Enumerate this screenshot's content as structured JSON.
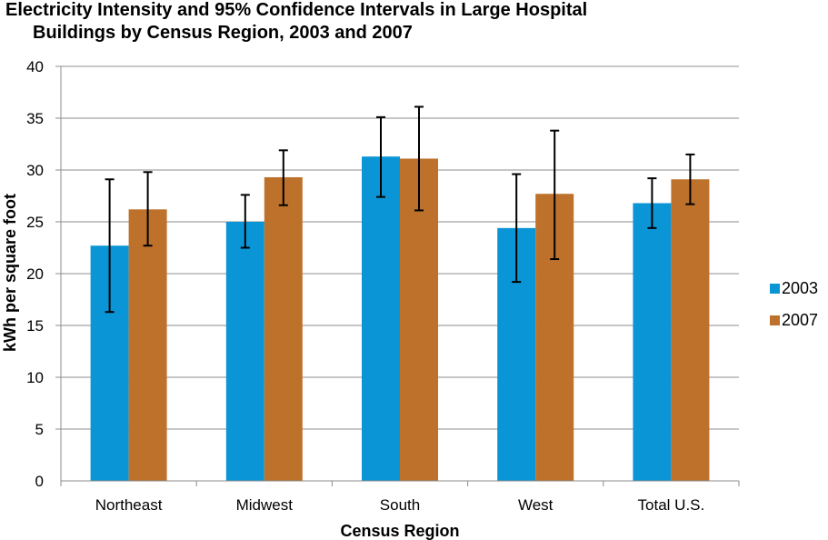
{
  "chart_data": {
    "type": "bar",
    "title_lines": [
      "Electricity Intensity and 95% Confidence Intervals in Large Hospital",
      "Buildings by Census Region, 2003 and 2007"
    ],
    "xlabel": "Census Region",
    "ylabel": "kWh per square foot",
    "ylim": [
      0,
      40
    ],
    "yticks": [
      0,
      5,
      10,
      15,
      20,
      25,
      30,
      35,
      40
    ],
    "grid": "horizontal",
    "legend_position": "right",
    "categories": [
      "Northeast",
      "Midwest",
      "South",
      "West",
      "Total U.S."
    ],
    "series": [
      {
        "name": "2003",
        "color": "#0a96d6",
        "values": [
          22.7,
          25.0,
          31.3,
          24.4,
          26.8
        ],
        "error_low": [
          16.3,
          22.5,
          27.4,
          19.2,
          24.4
        ],
        "error_high": [
          29.1,
          27.6,
          35.1,
          29.6,
          29.2
        ]
      },
      {
        "name": "2007",
        "color": "#bd712b",
        "values": [
          26.2,
          29.3,
          31.1,
          27.7,
          29.1
        ],
        "error_low": [
          22.7,
          26.6,
          26.1,
          21.4,
          26.7
        ],
        "error_high": [
          29.8,
          31.9,
          36.1,
          33.8,
          31.5
        ]
      }
    ]
  }
}
